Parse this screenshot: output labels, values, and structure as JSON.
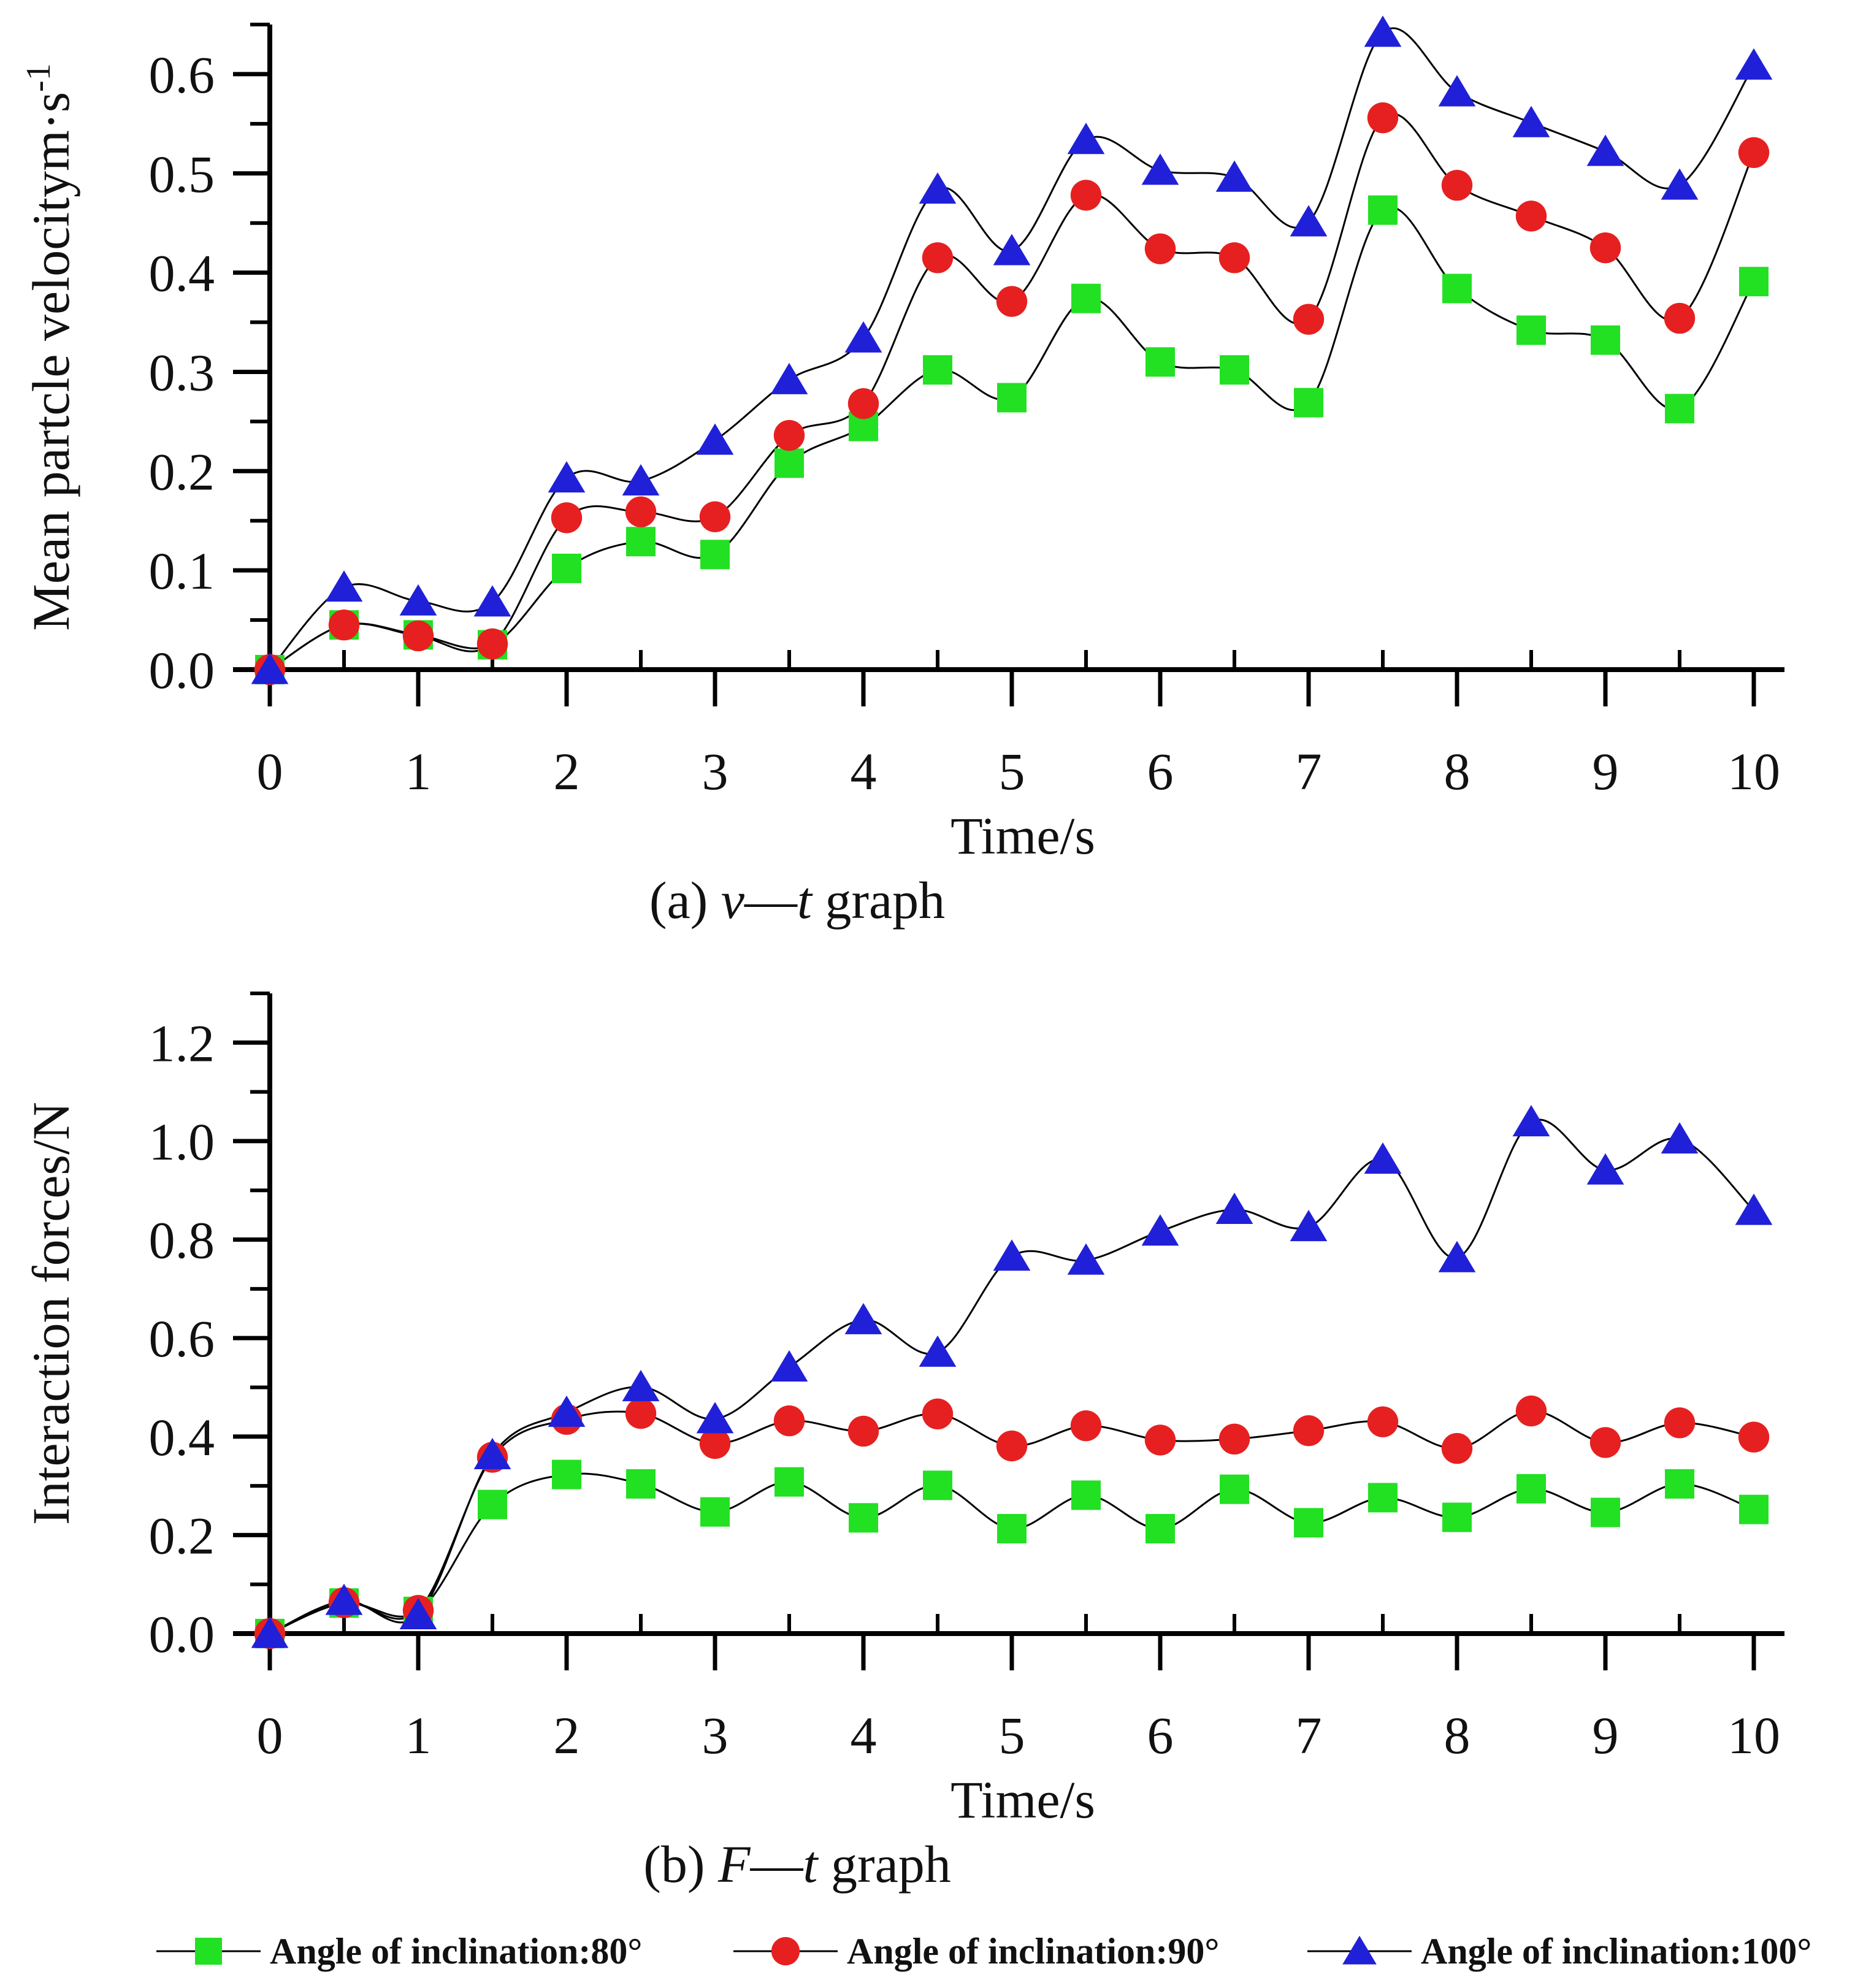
{
  "chart_data": [
    {
      "type": "line",
      "caption_prefix": "(a) ",
      "caption_var1": "v",
      "caption_dash": "—",
      "caption_var2": "t",
      "caption_suffix": " graph",
      "xlabel": "Time/s",
      "ylabel_main": "Mean partcle velocitym·s",
      "ylabel_sup": "-1",
      "xlim": [
        0,
        10
      ],
      "ylim": [
        0,
        0.65
      ],
      "xticks": [
        "0",
        "1",
        "2",
        "3",
        "4",
        "5",
        "6",
        "7",
        "8",
        "9",
        "10"
      ],
      "yticks": [
        "0.0",
        "0.1",
        "0.2",
        "0.3",
        "0.4",
        "0.5",
        "0.6"
      ],
      "ytick_values": [
        0,
        0.1,
        0.2,
        0.3,
        0.4,
        0.5,
        0.6
      ],
      "x": [
        0,
        0.5,
        1,
        1.5,
        2,
        2.5,
        3,
        3.5,
        4,
        4.5,
        5,
        5.5,
        6,
        6.5,
        7,
        7.5,
        8,
        8.5,
        9,
        9.5,
        10
      ],
      "series": [
        {
          "name": "Angle of inclination:80°",
          "marker": "square",
          "color": "#22e022",
          "values": [
            0,
            0.045,
            0.035,
            0.025,
            0.102,
            0.129,
            0.116,
            0.208,
            0.245,
            0.302,
            0.274,
            0.374,
            0.31,
            0.302,
            0.269,
            0.463,
            0.384,
            0.342,
            0.332,
            0.263,
            0.391
          ]
        },
        {
          "name": "Angle of inclination:90°",
          "marker": "circle",
          "color": "#e62020",
          "values": [
            0,
            0.045,
            0.034,
            0.026,
            0.153,
            0.159,
            0.154,
            0.236,
            0.268,
            0.415,
            0.371,
            0.478,
            0.424,
            0.415,
            0.353,
            0.556,
            0.488,
            0.457,
            0.425,
            0.354,
            0.521
          ]
        },
        {
          "name": "Angle of inclination:100°",
          "marker": "triangle",
          "color": "#2020d8",
          "values": [
            0,
            0.083,
            0.069,
            0.068,
            0.193,
            0.19,
            0.231,
            0.292,
            0.334,
            0.484,
            0.422,
            0.534,
            0.503,
            0.496,
            0.451,
            0.642,
            0.582,
            0.551,
            0.522,
            0.488,
            0.609
          ]
        }
      ]
    },
    {
      "type": "line",
      "caption_prefix": "(b) ",
      "caption_var1": "F",
      "caption_dash": "—",
      "caption_var2": "t",
      "caption_suffix": " graph",
      "xlabel": "Time/s",
      "ylabel_main": "Interaction forces/N",
      "ylabel_sup": "",
      "xlim": [
        0,
        10
      ],
      "ylim": [
        0,
        1.3
      ],
      "xticks": [
        "0",
        "1",
        "2",
        "3",
        "4",
        "5",
        "6",
        "7",
        "8",
        "9",
        "10"
      ],
      "yticks": [
        "0.0",
        "0.2",
        "0.4",
        "0.6",
        "0.8",
        "1.0",
        "1.2"
      ],
      "ytick_values": [
        0,
        0.2,
        0.4,
        0.6,
        0.8,
        1.0,
        1.2
      ],
      "x": [
        0,
        0.5,
        1,
        1.5,
        2,
        2.5,
        3,
        3.5,
        4,
        4.5,
        5,
        5.5,
        6,
        6.5,
        7,
        7.5,
        8,
        8.5,
        9,
        9.5,
        10
      ],
      "series": [
        {
          "name": "Angle of inclination:80°",
          "marker": "square",
          "color": "#22e022",
          "values": [
            0,
            0.062,
            0.045,
            0.262,
            0.323,
            0.304,
            0.247,
            0.308,
            0.235,
            0.301,
            0.213,
            0.281,
            0.213,
            0.293,
            0.225,
            0.276,
            0.236,
            0.294,
            0.246,
            0.304,
            0.252
          ]
        },
        {
          "name": "Angle of inclination:90°",
          "marker": "circle",
          "color": "#e62020",
          "values": [
            0,
            0.063,
            0.047,
            0.358,
            0.435,
            0.447,
            0.386,
            0.432,
            0.411,
            0.446,
            0.381,
            0.422,
            0.393,
            0.395,
            0.412,
            0.43,
            0.376,
            0.452,
            0.388,
            0.428,
            0.399
          ]
        },
        {
          "name": "Angle of inclination:100°",
          "marker": "triangle",
          "color": "#2020d8",
          "values": [
            0,
            0.067,
            0.038,
            0.363,
            0.449,
            0.501,
            0.436,
            0.541,
            0.637,
            0.571,
            0.766,
            0.758,
            0.817,
            0.861,
            0.826,
            0.963,
            0.763,
            1.039,
            0.941,
            1.004,
            0.859
          ]
        }
      ]
    }
  ],
  "legend": [
    {
      "label": "Angle of inclination:80°",
      "marker": "square",
      "color": "#22e022"
    },
    {
      "label": "Angle of inclination:90°",
      "marker": "circle",
      "color": "#e62020"
    },
    {
      "label": "Angle of inclination:100°",
      "marker": "triangle",
      "color": "#2020d8"
    }
  ]
}
